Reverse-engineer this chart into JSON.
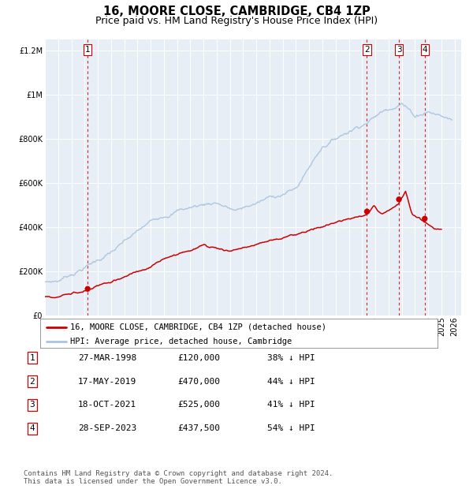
{
  "title": "16, MOORE CLOSE, CAMBRIDGE, CB4 1ZP",
  "subtitle": "Price paid vs. HM Land Registry's House Price Index (HPI)",
  "ylim": [
    0,
    1250000
  ],
  "xlim_start": 1995.0,
  "xlim_end": 2026.5,
  "hpi_color": "#aac4e0",
  "price_color": "#cc0000",
  "vline_color": "#cc0000",
  "background_color": "#e8eef5",
  "sale_dates": [
    1998.23,
    2019.37,
    2021.79,
    2023.74
  ],
  "sale_prices": [
    120000,
    470000,
    525000,
    437500
  ],
  "sale_labels": [
    "1",
    "2",
    "3",
    "4"
  ],
  "legend_label_price": "16, MOORE CLOSE, CAMBRIDGE, CB4 1ZP (detached house)",
  "legend_label_hpi": "HPI: Average price, detached house, Cambridge",
  "table_rows": [
    [
      "1",
      "27-MAR-1998",
      "£120,000",
      "38% ↓ HPI"
    ],
    [
      "2",
      "17-MAY-2019",
      "£470,000",
      "44% ↓ HPI"
    ],
    [
      "3",
      "18-OCT-2021",
      "£525,000",
      "41% ↓ HPI"
    ],
    [
      "4",
      "28-SEP-2023",
      "£437,500",
      "54% ↓ HPI"
    ]
  ],
  "footnote": "Contains HM Land Registry data © Crown copyright and database right 2024.\nThis data is licensed under the Open Government Licence v3.0.",
  "title_fontsize": 10.5,
  "subtitle_fontsize": 9,
  "tick_fontsize": 7,
  "legend_fontsize": 7.5,
  "table_fontsize": 8,
  "footnote_fontsize": 6.5
}
